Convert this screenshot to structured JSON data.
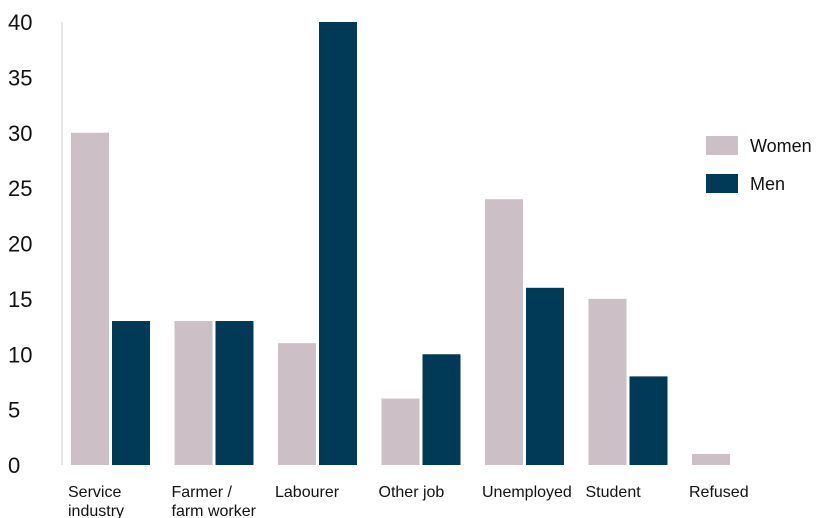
{
  "chart_data": {
    "type": "bar",
    "categories": [
      [
        "Service",
        "industry"
      ],
      [
        "Farmer /",
        "farm worker"
      ],
      [
        "Labourer"
      ],
      [
        "Other job"
      ],
      [
        "Unemployed"
      ],
      [
        "Student"
      ],
      [
        "Refused"
      ]
    ],
    "series": [
      {
        "name": "Women",
        "color": "#cdbfc6",
        "values": [
          30,
          13,
          11,
          6,
          24,
          15,
          1
        ]
      },
      {
        "name": "Men",
        "color": "#003a57",
        "values": [
          13,
          13,
          40,
          10,
          16,
          8,
          0
        ]
      }
    ],
    "ylim": [
      0,
      40
    ],
    "yticks": [
      0,
      5,
      10,
      15,
      20,
      25,
      30,
      35,
      40
    ],
    "grid": false,
    "legend_position": "right"
  }
}
